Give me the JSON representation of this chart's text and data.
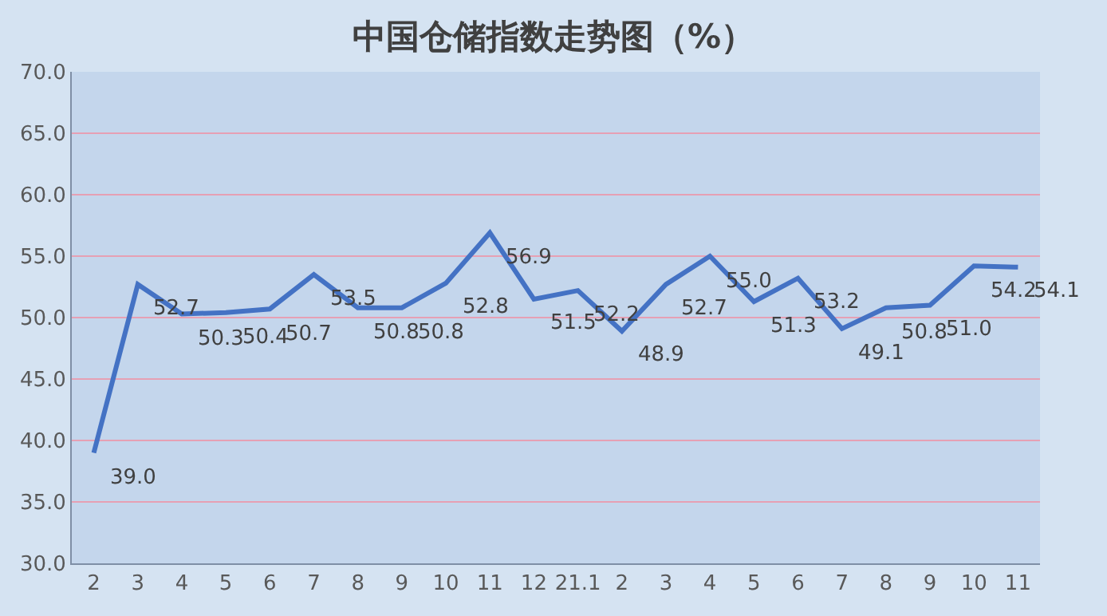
{
  "chart_data": {
    "type": "line",
    "title": "中国仓储指数走势图（%）",
    "categories": [
      "2",
      "3",
      "4",
      "5",
      "6",
      "7",
      "8",
      "9",
      "10",
      "11",
      "12",
      "21.1",
      "2",
      "3",
      "4",
      "5",
      "6",
      "7",
      "8",
      "9",
      "10",
      "11"
    ],
    "series": [
      {
        "color": "#4472c4",
        "values": [
          39.0,
          52.7,
          50.3,
          50.4,
          50.7,
          53.5,
          50.8,
          50.8,
          52.8,
          56.9,
          51.5,
          52.2,
          48.9,
          52.7,
          55.0,
          51.3,
          53.2,
          49.1,
          50.8,
          51.0,
          54.2,
          54.1
        ],
        "value_labels": [
          "39.0",
          "52.7",
          "50.3",
          "50.4",
          "50.7",
          "53.5",
          "50.8",
          "50.8",
          "52.8",
          "56.9",
          "51.5",
          "52.2",
          "48.9",
          "52.7",
          "55.0",
          "51.3",
          "53.2",
          "49.1",
          "50.8",
          "51.0",
          "54.2",
          "54.1"
        ]
      }
    ],
    "ylim": [
      30,
      70
    ],
    "yticks": [
      {
        "value": 30,
        "label": "30.0"
      },
      {
        "value": 35,
        "label": "35.0"
      },
      {
        "value": 40,
        "label": "40.0"
      },
      {
        "value": 45,
        "label": "45.0"
      },
      {
        "value": 50,
        "label": "50.0"
      },
      {
        "value": 55,
        "label": "55.0"
      },
      {
        "value": 60,
        "label": "60.0"
      },
      {
        "value": 65,
        "label": "65.0"
      },
      {
        "value": 70,
        "label": "70.0"
      }
    ],
    "grid": "y",
    "marker": "none",
    "line_style": "solid",
    "legend": false
  }
}
